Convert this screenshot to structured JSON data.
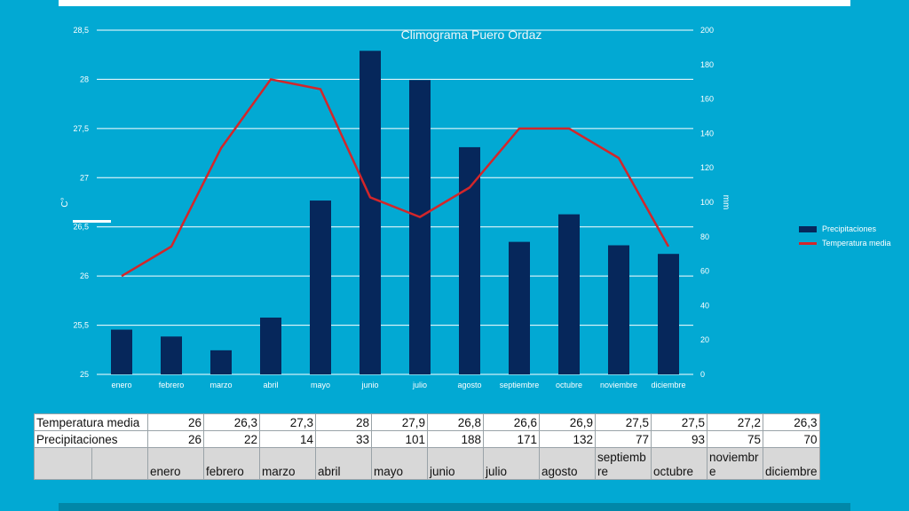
{
  "chart_data": {
    "type": "bar+line",
    "title": "Climograma Puero Ordaz",
    "categories": [
      "enero",
      "febrero",
      "marzo",
      "abril",
      "mayo",
      "junio",
      "julio",
      "agosto",
      "septiembre",
      "octubre",
      "noviembre",
      "diciembre"
    ],
    "series": [
      {
        "name": "Precipitaciones",
        "type": "bar",
        "axis": "right",
        "color": "#06275b",
        "values": [
          26,
          22,
          14,
          33,
          101,
          188,
          171,
          132,
          77,
          93,
          75,
          70
        ]
      },
      {
        "name": "Temperatura media",
        "type": "line",
        "axis": "left",
        "color": "#d3262a",
        "values": [
          26,
          26.3,
          27.3,
          28,
          27.9,
          26.8,
          26.6,
          26.9,
          27.5,
          27.5,
          27.2,
          26.3
        ]
      }
    ],
    "y_left": {
      "label": "C°",
      "lim": [
        25,
        28.5
      ],
      "ticks": [
        "25",
        "25,5",
        "26",
        "26,5",
        "27",
        "27,5",
        "28",
        "28,5"
      ]
    },
    "y_right": {
      "label": "mm",
      "lim": [
        0,
        200
      ],
      "ticks": [
        "0",
        "20",
        "40",
        "60",
        "80",
        "100",
        "120",
        "140",
        "160",
        "180",
        "200"
      ]
    },
    "grid": true,
    "legend": "right"
  },
  "table": {
    "rows": [
      {
        "label": "Temperatura media",
        "values": [
          "26",
          "26,3",
          "27,3",
          "28",
          "27,9",
          "26,8",
          "26,6",
          "26,9",
          "27,5",
          "27,5",
          "27,2",
          "26,3"
        ]
      },
      {
        "label": "Precipitaciones",
        "values": [
          "26",
          "22",
          "14",
          "33",
          "101",
          "188",
          "171",
          "132",
          "77",
          "93",
          "75",
          "70"
        ]
      }
    ],
    "months": [
      "enero",
      "febrero",
      "marzo",
      "abril",
      "mayo",
      "junio",
      "julio",
      "agosto",
      "septiembre",
      "octubre",
      "noviembre",
      "diciembre"
    ]
  }
}
